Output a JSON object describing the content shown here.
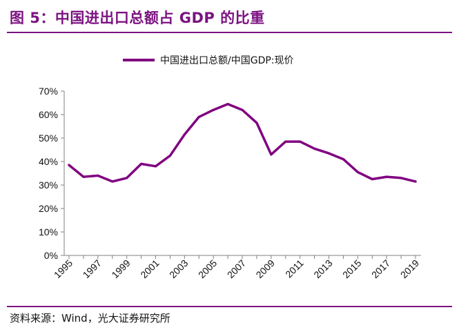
{
  "figure": {
    "title": "图 5：中国进出口总额占 GDP 的比重",
    "source": "资料来源：Wind，光大证券研究所"
  },
  "colors": {
    "accent": "#7b1381",
    "series": "#800080"
  },
  "chart_data": {
    "type": "line",
    "title": "",
    "xlabel": "",
    "ylabel": "",
    "ylim": [
      0,
      70
    ],
    "yticks": [
      "0%",
      "10%",
      "20%",
      "30%",
      "40%",
      "50%",
      "60%",
      "70%"
    ],
    "xticks": [
      "1995",
      "1997",
      "1999",
      "2001",
      "2003",
      "2005",
      "2007",
      "2009",
      "2011",
      "2013",
      "2015",
      "2017",
      "2019"
    ],
    "x": [
      1995,
      1996,
      1997,
      1998,
      1999,
      2000,
      2001,
      2002,
      2003,
      2004,
      2005,
      2006,
      2007,
      2008,
      2009,
      2010,
      2011,
      2012,
      2013,
      2014,
      2015,
      2016,
      2017,
      2018,
      2019
    ],
    "series": [
      {
        "name": "中国进出口总额/中国GDP:现价",
        "values": [
          38.5,
          33.5,
          34.0,
          31.5,
          33.0,
          39.0,
          38.0,
          42.5,
          51.5,
          59.0,
          62.0,
          64.5,
          62.0,
          56.5,
          43.0,
          48.5,
          48.5,
          45.5,
          43.5,
          41.0,
          35.5,
          32.5,
          33.5,
          33.0,
          31.5
        ]
      }
    ],
    "legend": "top-center",
    "grid": false
  }
}
